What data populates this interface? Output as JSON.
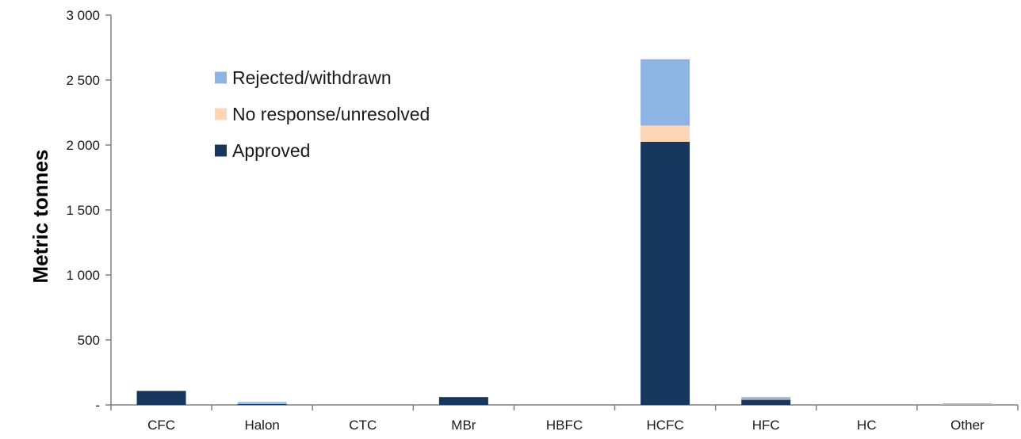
{
  "chart_data": {
    "type": "bar",
    "stacked": true,
    "title": "",
    "xlabel": "",
    "ylabel": "Metric tonnes",
    "ylim": [
      0,
      3000
    ],
    "yticks": [
      0,
      500,
      1000,
      1500,
      2000,
      2500,
      3000
    ],
    "ytick_labels": [
      "-",
      "500",
      "1 000",
      "1 500",
      "2 000",
      "2 500",
      "3 000"
    ],
    "grid": false,
    "legend_position": "top-left inside plot",
    "categories": [
      "CFC",
      "Halon",
      "CTC",
      "MBr",
      "HBFC",
      "HCFC",
      "HFC",
      "HC",
      "Other"
    ],
    "series": [
      {
        "name": "Approved",
        "color": "#17375e",
        "values": [
          108,
          8,
          0,
          60,
          0,
          2025,
          40,
          0,
          2
        ]
      },
      {
        "name": "No response/unresolved",
        "color": "#fcd5b4",
        "values": [
          0,
          2,
          0,
          0,
          0,
          125,
          4,
          0,
          2
        ]
      },
      {
        "name": "Rejected/withdrawn",
        "color": "#8db4e2",
        "values": [
          0,
          12,
          0,
          0,
          0,
          510,
          16,
          0,
          8
        ]
      }
    ],
    "legend_order": [
      "Rejected/withdrawn",
      "No response/unresolved",
      "Approved"
    ]
  }
}
